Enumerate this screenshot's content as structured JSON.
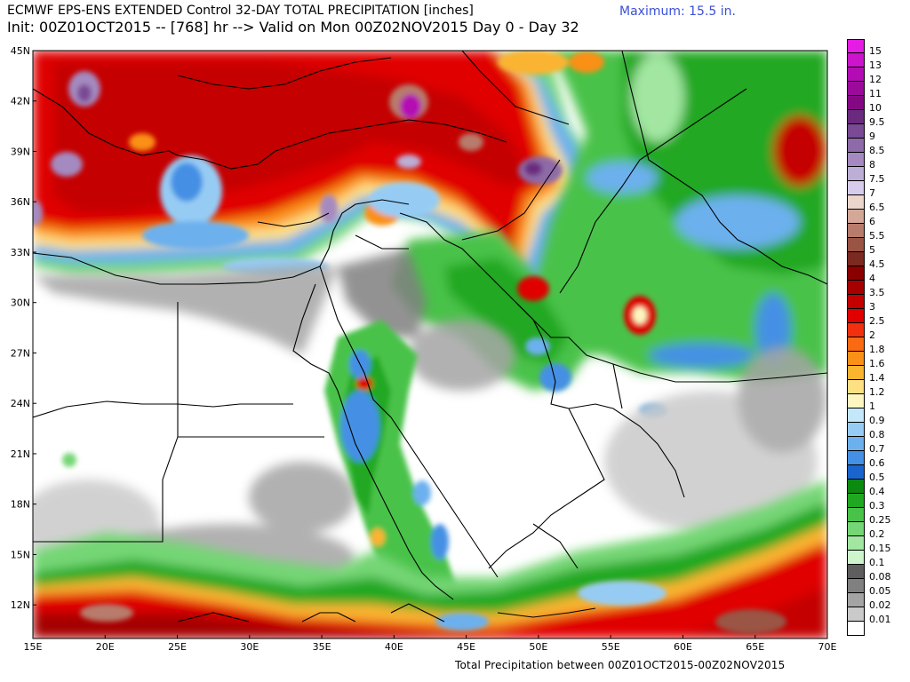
{
  "header": {
    "title_line1": "ECMWF EPS-ENS EXTENDED Control 32-DAY TOTAL PRECIPITATION [inches]",
    "title_line2": "Init: 00Z01OCT2015 -- [768] hr --> Valid on Mon 00Z02NOV2015  Day 0 - Day 32",
    "maximum": "Maximum:  15.5 in."
  },
  "footer": {
    "text": "Total Precipitation between 00Z01OCT2015-00Z02NOV2015"
  },
  "map": {
    "lon_range": [
      15,
      70
    ],
    "lat_range": [
      10,
      45
    ],
    "lat_labels": [
      "45N",
      "42N",
      "39N",
      "36N",
      "33N",
      "30N",
      "27N",
      "24N",
      "21N",
      "18N",
      "15N",
      "12N"
    ],
    "lon_labels": [
      "15E",
      "20E",
      "25E",
      "30E",
      "35E",
      "40E",
      "45E",
      "50E",
      "55E",
      "60E",
      "65E",
      "70E"
    ]
  },
  "legend": {
    "items": [
      {
        "label": "15",
        "color": "#e41ce4"
      },
      {
        "label": "13",
        "color": "#cc14cc"
      },
      {
        "label": "12",
        "color": "#b40cb4"
      },
      {
        "label": "11",
        "color": "#9c0a9c"
      },
      {
        "label": "10",
        "color": "#840884"
      },
      {
        "label": "9.5",
        "color": "#6a2a7e"
      },
      {
        "label": "9",
        "color": "#7a4a94"
      },
      {
        "label": "8.5",
        "color": "#8e6aa8"
      },
      {
        "label": "8",
        "color": "#a48ac0"
      },
      {
        "label": "7.5",
        "color": "#bcaed4"
      },
      {
        "label": "7",
        "color": "#d8ccec"
      },
      {
        "label": "6.5",
        "color": "#ecd6cc"
      },
      {
        "label": "6",
        "color": "#d4a898"
      },
      {
        "label": "5.5",
        "color": "#b87c6c"
      },
      {
        "label": "5",
        "color": "#9a5444"
      },
      {
        "label": "4.5",
        "color": "#7a2a20"
      },
      {
        "label": "4",
        "color": "#8a0000"
      },
      {
        "label": "3.5",
        "color": "#a60000"
      },
      {
        "label": "3",
        "color": "#c40000"
      },
      {
        "label": "2.5",
        "color": "#e00000"
      },
      {
        "label": "2",
        "color": "#f23010"
      },
      {
        "label": "1.8",
        "color": "#fa6a12"
      },
      {
        "label": "1.6",
        "color": "#fa9018"
      },
      {
        "label": "1.4",
        "color": "#fab430"
      },
      {
        "label": "1.2",
        "color": "#fee084"
      },
      {
        "label": "1",
        "color": "#fef6c0"
      },
      {
        "label": "0.9",
        "color": "#c4e8fa"
      },
      {
        "label": "0.8",
        "color": "#96ccf4"
      },
      {
        "label": "0.7",
        "color": "#6cb0ee"
      },
      {
        "label": "0.6",
        "color": "#4490e4"
      },
      {
        "label": "0.5",
        "color": "#1a64d0"
      },
      {
        "label": "0.4",
        "color": "#0c8a10"
      },
      {
        "label": "0.3",
        "color": "#20a820"
      },
      {
        "label": "0.25",
        "color": "#48c248"
      },
      {
        "label": "0.2",
        "color": "#74d674"
      },
      {
        "label": "0.15",
        "color": "#a2e6a2"
      },
      {
        "label": "0.1",
        "color": "#cef4ce"
      },
      {
        "label": "0.08",
        "color": "#5e5e5e"
      },
      {
        "label": "0.05",
        "color": "#808080"
      },
      {
        "label": "0.02",
        "color": "#a4a4a4"
      },
      {
        "label": "0.01",
        "color": "#cacaca"
      },
      {
        "label": "",
        "color": "#ffffff"
      }
    ]
  }
}
